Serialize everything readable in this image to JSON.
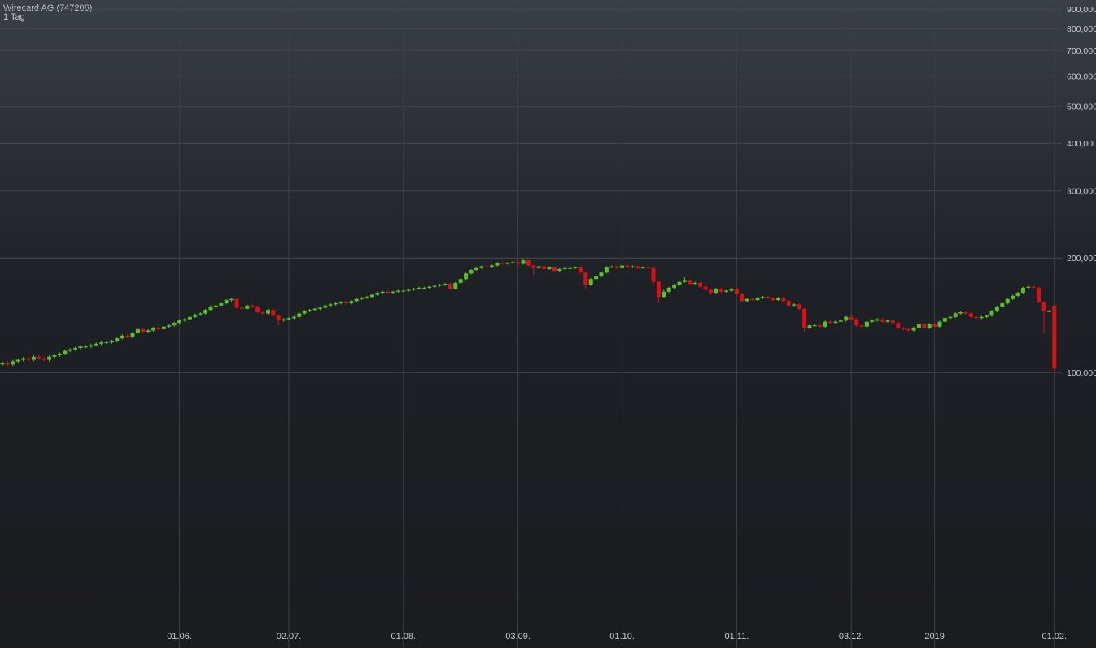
{
  "chart_data": {
    "type": "candlestick",
    "title": "Wirecard AG (747206)",
    "subtitle": "1 Tag",
    "log_scale": true,
    "grid": true,
    "up_color": "#5cbf2a",
    "down_color": "#d41218",
    "ylim": [
      21.6,
      951
    ],
    "yticks": [
      {
        "value": 100,
        "label": "100,000"
      },
      {
        "value": 200,
        "label": "200,000"
      },
      {
        "value": 300,
        "label": "300,000"
      },
      {
        "value": 400,
        "label": "400,000"
      },
      {
        "value": 500,
        "label": "500,000"
      },
      {
        "value": 600,
        "label": "600,000"
      },
      {
        "value": 700,
        "label": "700,000"
      },
      {
        "value": 800,
        "label": "800,000"
      },
      {
        "value": 900,
        "label": "900,000"
      }
    ],
    "categories": [
      null,
      null,
      null,
      null,
      null,
      null,
      null,
      null,
      null,
      null,
      null,
      null,
      null,
      null,
      null,
      null,
      null,
      null,
      null,
      null,
      null,
      null,
      null,
      null,
      null,
      null,
      null,
      null,
      null,
      null,
      null,
      null,
      null,
      null,
      "01.06.",
      null,
      null,
      null,
      null,
      null,
      null,
      null,
      null,
      null,
      null,
      null,
      null,
      null,
      null,
      null,
      null,
      null,
      null,
      null,
      null,
      "02.07.",
      null,
      null,
      null,
      null,
      null,
      null,
      null,
      null,
      null,
      null,
      null,
      null,
      null,
      null,
      null,
      null,
      null,
      null,
      null,
      null,
      null,
      "01.08.",
      null,
      null,
      null,
      null,
      null,
      null,
      null,
      null,
      null,
      null,
      null,
      null,
      null,
      null,
      null,
      null,
      null,
      null,
      null,
      null,
      null,
      "03.09.",
      null,
      null,
      null,
      null,
      null,
      null,
      null,
      null,
      null,
      null,
      null,
      null,
      null,
      null,
      null,
      null,
      null,
      null,
      null,
      "01.10.",
      null,
      null,
      null,
      null,
      null,
      null,
      null,
      null,
      null,
      null,
      null,
      null,
      null,
      null,
      null,
      null,
      null,
      null,
      null,
      null,
      null,
      "01.11.",
      null,
      null,
      null,
      null,
      null,
      null,
      null,
      null,
      null,
      null,
      null,
      null,
      null,
      null,
      null,
      null,
      null,
      null,
      null,
      null,
      null,
      "03.12.",
      null,
      null,
      null,
      null,
      null,
      null,
      null,
      null,
      null,
      null,
      null,
      null,
      null,
      null,
      null,
      "2019",
      null,
      null,
      null,
      null,
      null,
      null,
      null,
      null,
      null,
      null,
      null,
      null,
      null,
      null,
      null,
      null,
      null,
      null,
      null,
      null,
      null,
      null,
      "01.02."
    ],
    "ohlc": [
      [
        105,
        107,
        104,
        106
      ],
      [
        106,
        107,
        104,
        105
      ],
      [
        105,
        108,
        104,
        107
      ],
      [
        107,
        109,
        106,
        108
      ],
      [
        108,
        110,
        107,
        109
      ],
      [
        109,
        110,
        107,
        108
      ],
      [
        108,
        111,
        107,
        110
      ],
      [
        110,
        111,
        108,
        109
      ],
      [
        109,
        110,
        107,
        108
      ],
      [
        108,
        111,
        107,
        110
      ],
      [
        110,
        112,
        109,
        111
      ],
      [
        111,
        113,
        110,
        112
      ],
      [
        112,
        115,
        111,
        114
      ],
      [
        114,
        116,
        113,
        115
      ],
      [
        115,
        117,
        114,
        116
      ],
      [
        116,
        118,
        115,
        117
      ],
      [
        117,
        118,
        116,
        117
      ],
      [
        117,
        119,
        116,
        118
      ],
      [
        118,
        120,
        117,
        119
      ],
      [
        119,
        121,
        118,
        120
      ],
      [
        120,
        121,
        119,
        120
      ],
      [
        120,
        122,
        119,
        121
      ],
      [
        121,
        124,
        120,
        123
      ],
      [
        123,
        126,
        122,
        125
      ],
      [
        125,
        126,
        123,
        124
      ],
      [
        124,
        128,
        123,
        127
      ],
      [
        127,
        131,
        126,
        130
      ],
      [
        130,
        131,
        127,
        128
      ],
      [
        128,
        130,
        127,
        129
      ],
      [
        129,
        132,
        128,
        131
      ],
      [
        131,
        132,
        129,
        130
      ],
      [
        130,
        133,
        129,
        132
      ],
      [
        132,
        134,
        131,
        133
      ],
      [
        133,
        136,
        132,
        135
      ],
      [
        135,
        138,
        134,
        137
      ],
      [
        137,
        139,
        136,
        138
      ],
      [
        138,
        141,
        137,
        140
      ],
      [
        140,
        143,
        139,
        142
      ],
      [
        142,
        144,
        141,
        143
      ],
      [
        143,
        147,
        142,
        146
      ],
      [
        146,
        150,
        145,
        149
      ],
      [
        149,
        151,
        147,
        150
      ],
      [
        150,
        153,
        149,
        152
      ],
      [
        152,
        156,
        151,
        155
      ],
      [
        155,
        157,
        153,
        156
      ],
      [
        156,
        157,
        147,
        148
      ],
      [
        148,
        149,
        146,
        147
      ],
      [
        147,
        151,
        146,
        150
      ],
      [
        150,
        151,
        148,
        149
      ],
      [
        149,
        150,
        143,
        144
      ],
      [
        144,
        145,
        142,
        143
      ],
      [
        143,
        147,
        142,
        146
      ],
      [
        146,
        147,
        140,
        141
      ],
      [
        141,
        142,
        133,
        137
      ],
      [
        137,
        139,
        136,
        138
      ],
      [
        138,
        140,
        137,
        139
      ],
      [
        139,
        141,
        138,
        140
      ],
      [
        140,
        144,
        139,
        143
      ],
      [
        143,
        146,
        142,
        145
      ],
      [
        145,
        147,
        144,
        146
      ],
      [
        146,
        148,
        145,
        147
      ],
      [
        147,
        149,
        146,
        148
      ],
      [
        148,
        151,
        147,
        150
      ],
      [
        150,
        152,
        149,
        151
      ],
      [
        151,
        153,
        150,
        152
      ],
      [
        152,
        154,
        151,
        153
      ],
      [
        153,
        154,
        151,
        152
      ],
      [
        152,
        155,
        151,
        154
      ],
      [
        154,
        157,
        153,
        156
      ],
      [
        156,
        158,
        155,
        157
      ],
      [
        157,
        159,
        156,
        158
      ],
      [
        158,
        161,
        157,
        160
      ],
      [
        160,
        163,
        159,
        162
      ],
      [
        162,
        164,
        161,
        163
      ],
      [
        163,
        164,
        161,
        162
      ],
      [
        162,
        164,
        161,
        163
      ],
      [
        163,
        165,
        162,
        164
      ],
      [
        164,
        165,
        163,
        164
      ],
      [
        164,
        166,
        163,
        165
      ],
      [
        165,
        167,
        164,
        166
      ],
      [
        166,
        168,
        165,
        167
      ],
      [
        167,
        168,
        166,
        167
      ],
      [
        167,
        169,
        166,
        168
      ],
      [
        168,
        170,
        167,
        169
      ],
      [
        169,
        171,
        168,
        170
      ],
      [
        170,
        172,
        169,
        171
      ],
      [
        171,
        172,
        165,
        166
      ],
      [
        166,
        173,
        165,
        172
      ],
      [
        172,
        177,
        171,
        176
      ],
      [
        176,
        183,
        175,
        182
      ],
      [
        182,
        187,
        181,
        186
      ],
      [
        186,
        189,
        185,
        188
      ],
      [
        188,
        191,
        187,
        190
      ],
      [
        190,
        191,
        188,
        189
      ],
      [
        189,
        192,
        188,
        191
      ],
      [
        191,
        195,
        190,
        194
      ],
      [
        194,
        195,
        192,
        193
      ],
      [
        193,
        195,
        192,
        194
      ],
      [
        194,
        196,
        193,
        195
      ],
      [
        195,
        196,
        192,
        193
      ],
      [
        193,
        199,
        192,
        197
      ],
      [
        197,
        198,
        190,
        191
      ],
      [
        191,
        192,
        180,
        188
      ],
      [
        188,
        191,
        187,
        190
      ],
      [
        190,
        191,
        186,
        187
      ],
      [
        187,
        190,
        186,
        189
      ],
      [
        189,
        190,
        184,
        185
      ],
      [
        185,
        188,
        184,
        187
      ],
      [
        187,
        189,
        186,
        188
      ],
      [
        188,
        190,
        187,
        188
      ],
      [
        188,
        190,
        187,
        189
      ],
      [
        189,
        190,
        182,
        183
      ],
      [
        183,
        184,
        166,
        170
      ],
      [
        170,
        177,
        169,
        176
      ],
      [
        176,
        180,
        175,
        179
      ],
      [
        179,
        184,
        178,
        183
      ],
      [
        183,
        190,
        182,
        189
      ],
      [
        189,
        191,
        188,
        190
      ],
      [
        190,
        191,
        187,
        188
      ],
      [
        188,
        192,
        187,
        191
      ],
      [
        191,
        192,
        188,
        189
      ],
      [
        189,
        191,
        188,
        190
      ],
      [
        190,
        191,
        187,
        188
      ],
      [
        188,
        190,
        187,
        189
      ],
      [
        189,
        190,
        187,
        188
      ],
      [
        188,
        189,
        171,
        173
      ],
      [
        173,
        174,
        152,
        158
      ],
      [
        158,
        165,
        157,
        163
      ],
      [
        163,
        168,
        162,
        167
      ],
      [
        167,
        171,
        166,
        170
      ],
      [
        170,
        174,
        169,
        173
      ],
      [
        173,
        178,
        172,
        175
      ],
      [
        175,
        176,
        170,
        171
      ],
      [
        171,
        173,
        170,
        172
      ],
      [
        172,
        173,
        167,
        168
      ],
      [
        168,
        169,
        164,
        165
      ],
      [
        165,
        166,
        160,
        162
      ],
      [
        162,
        167,
        161,
        166
      ],
      [
        166,
        167,
        162,
        163
      ],
      [
        163,
        165,
        162,
        164
      ],
      [
        164,
        167,
        163,
        166
      ],
      [
        166,
        167,
        160,
        161
      ],
      [
        161,
        162,
        153,
        154
      ],
      [
        154,
        157,
        153,
        156
      ],
      [
        156,
        157,
        154,
        155
      ],
      [
        155,
        158,
        154,
        157
      ],
      [
        157,
        159,
        156,
        158
      ],
      [
        158,
        159,
        156,
        157
      ],
      [
        157,
        158,
        154,
        155
      ],
      [
        155,
        158,
        154,
        157
      ],
      [
        157,
        158,
        153,
        154
      ],
      [
        154,
        155,
        149,
        150
      ],
      [
        150,
        152,
        149,
        151
      ],
      [
        151,
        152,
        146,
        147
      ],
      [
        147,
        148,
        128,
        131
      ],
      [
        131,
        134,
        130,
        133
      ],
      [
        133,
        134,
        132,
        133
      ],
      [
        133,
        134,
        131,
        132
      ],
      [
        132,
        137,
        131,
        136
      ],
      [
        136,
        137,
        134,
        135
      ],
      [
        135,
        137,
        134,
        136
      ],
      [
        136,
        138,
        135,
        137
      ],
      [
        137,
        141,
        136,
        140
      ],
      [
        140,
        141,
        137,
        138
      ],
      [
        138,
        139,
        132,
        133
      ],
      [
        133,
        134,
        131,
        132
      ],
      [
        132,
        137,
        131,
        136
      ],
      [
        136,
        138,
        135,
        137
      ],
      [
        137,
        139,
        136,
        138
      ],
      [
        138,
        139,
        135,
        136
      ],
      [
        136,
        138,
        135,
        137
      ],
      [
        137,
        138,
        134,
        135
      ],
      [
        135,
        136,
        130,
        131
      ],
      [
        131,
        132,
        129,
        130
      ],
      [
        130,
        131,
        128,
        129
      ],
      [
        129,
        132,
        128,
        131
      ],
      [
        131,
        135,
        130,
        134
      ],
      [
        134,
        135,
        130,
        131
      ],
      [
        131,
        135,
        130,
        134
      ],
      [
        134,
        135,
        131,
        132
      ],
      [
        132,
        137,
        131,
        136
      ],
      [
        136,
        140,
        135,
        139
      ],
      [
        139,
        141,
        138,
        140
      ],
      [
        140,
        144,
        139,
        143
      ],
      [
        143,
        145,
        142,
        144
      ],
      [
        144,
        145,
        142,
        143
      ],
      [
        143,
        144,
        139,
        140
      ],
      [
        140,
        141,
        138,
        139
      ],
      [
        139,
        141,
        138,
        140
      ],
      [
        140,
        142,
        139,
        141
      ],
      [
        141,
        146,
        140,
        145
      ],
      [
        145,
        150,
        144,
        149
      ],
      [
        149,
        153,
        148,
        152
      ],
      [
        152,
        157,
        151,
        156
      ],
      [
        156,
        160,
        155,
        159
      ],
      [
        159,
        163,
        158,
        162
      ],
      [
        162,
        168,
        161,
        167
      ],
      [
        167,
        170,
        166,
        168
      ],
      [
        168,
        169,
        166,
        167
      ],
      [
        167,
        168,
        152,
        153
      ],
      [
        153,
        154,
        127,
        145
      ],
      [
        145,
        146,
        144,
        145
      ],
      [
        150,
        151,
        101,
        102.5
      ]
    ]
  }
}
